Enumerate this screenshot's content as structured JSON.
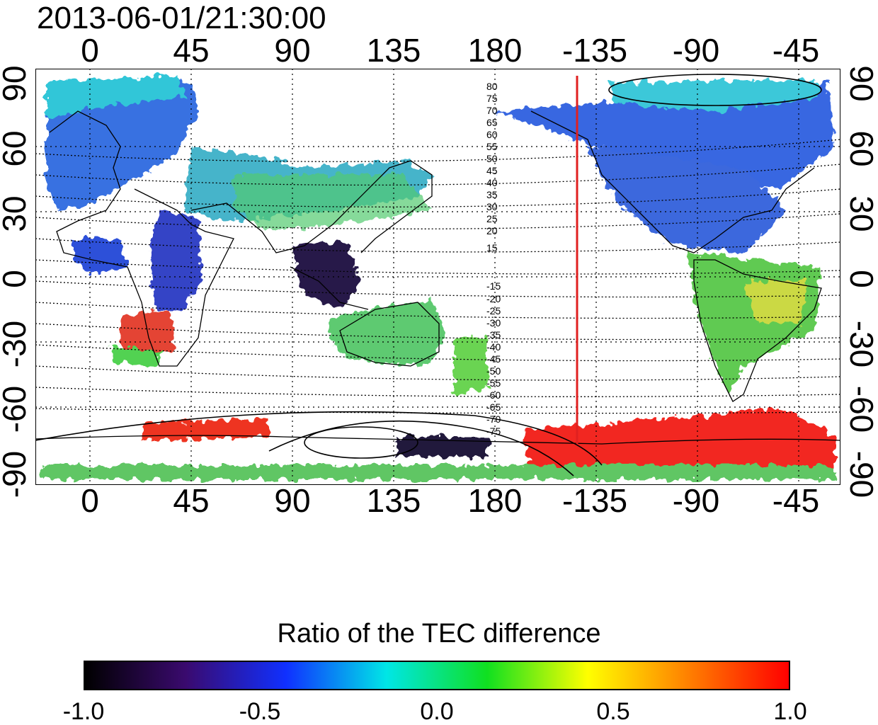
{
  "title": "2013-06-01/21:30:00",
  "longitude_ticks": [
    "0",
    "45",
    "90",
    "135",
    "180",
    "-135",
    "-90",
    "-45"
  ],
  "latitude_ticks": [
    "90",
    "60",
    "30",
    "0",
    "-30",
    "-60",
    "-90"
  ],
  "contour_labels_north": [
    "80",
    "75",
    "70",
    "65",
    "60",
    "55",
    "50",
    "45",
    "40",
    "35",
    "30",
    "25",
    "20",
    "15"
  ],
  "contour_labels_south": [
    "-15",
    "-20",
    "-25",
    "-30",
    "-35",
    "-40",
    "-45",
    "-50",
    "-55",
    "-60",
    "-65",
    "-70",
    "-75"
  ],
  "marker_line_longitude": "-135",
  "colorbar": {
    "title": "Ratio of the TEC difference",
    "ticks": [
      "-1.0",
      "-0.5",
      "0.0",
      "0.5",
      "1.0"
    ],
    "range": [
      -1.0,
      1.0
    ],
    "colors": [
      "#000000",
      "#3a0a6e",
      "#1030ff",
      "#00e6e6",
      "#10e020",
      "#ffff00",
      "#ff8000",
      "#ff0000"
    ]
  },
  "colors": {
    "marker_line": "#e02020",
    "coastline": "#000000"
  }
}
